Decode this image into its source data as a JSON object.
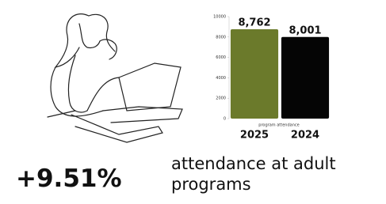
{
  "chart_data": {
    "type": "bar",
    "x_label": "program attendance",
    "categories": [
      "2025",
      "2024"
    ],
    "values": [
      8762,
      8001
    ],
    "value_labels": [
      "8,762",
      "8,001"
    ],
    "colors": [
      "#6b7a2b",
      "#050505"
    ],
    "ylim": [
      0,
      10000
    ],
    "yticks": [
      0,
      2000,
      4000,
      6000,
      8000,
      10000
    ],
    "grid": false
  },
  "stat": {
    "value": "+9.51%",
    "caption": "attendance at adult programs"
  }
}
